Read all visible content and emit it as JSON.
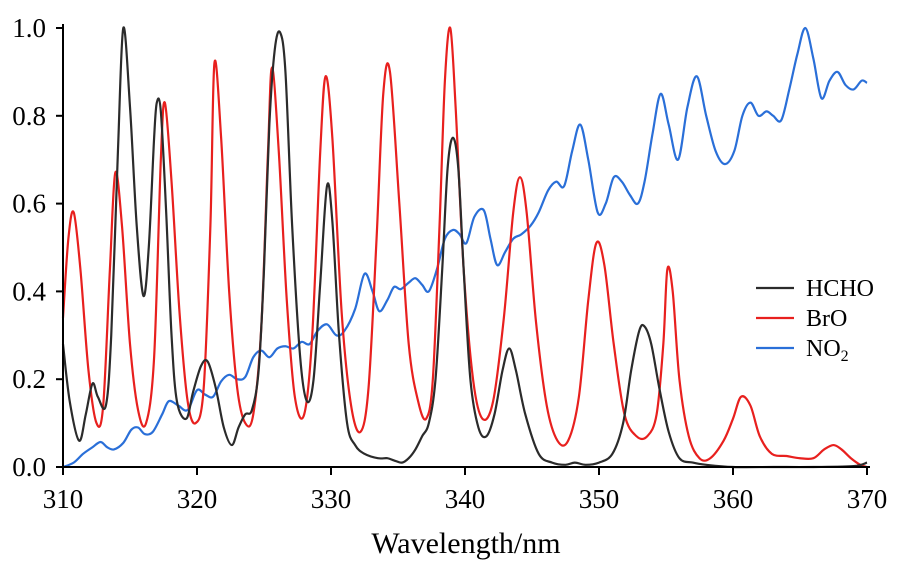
{
  "chart_data": {
    "type": "line",
    "xlabel": "Wavelength/nm",
    "ylabel": "",
    "title": "",
    "xlim": [
      310,
      370
    ],
    "ylim": [
      0,
      1.0
    ],
    "xticks": [
      "310",
      "320",
      "330",
      "340",
      "350",
      "360",
      "370"
    ],
    "yticks": [
      "0.0",
      "0.2",
      "0.4",
      "0.6",
      "0.8",
      "1.0"
    ],
    "legend_placement": "right",
    "grid": false,
    "series": [
      {
        "name": "HCHO",
        "color": "#2b2b2b",
        "x": [
          310.0,
          310.5,
          311.2,
          311.7,
          312.2,
          312.6,
          313.2,
          313.6,
          314.1,
          314.5,
          315.0,
          315.5,
          316.0,
          316.4,
          316.8,
          317.0,
          317.3,
          317.7,
          318.1,
          318.5,
          319.2,
          319.7,
          320.3,
          320.8,
          321.4,
          322.0,
          322.6,
          323.1,
          323.6,
          324.1,
          324.6,
          325.0,
          325.4,
          325.8,
          326.2,
          326.6,
          327.1,
          327.7,
          328.2,
          328.7,
          329.2,
          329.7,
          330.1,
          330.6,
          331.2,
          331.8,
          332.5,
          333.5,
          334.2,
          334.7,
          335.3,
          335.8,
          336.3,
          336.8,
          337.3,
          337.8,
          338.3,
          338.7,
          339.1,
          339.5,
          339.9,
          340.4,
          341.0,
          341.6,
          342.2,
          342.8,
          343.3,
          343.8,
          344.5,
          345.5,
          346.5,
          347.5,
          348.2,
          349.0,
          350.0,
          351.0,
          351.8,
          352.4,
          353.0,
          353.4,
          353.9,
          354.5,
          355.2,
          356.0,
          357.0,
          358.0,
          360.0,
          363.0,
          366.0,
          369.0,
          370.0
        ],
        "y": [
          0.28,
          0.15,
          0.06,
          0.12,
          0.19,
          0.16,
          0.14,
          0.3,
          0.72,
          1.0,
          0.82,
          0.55,
          0.39,
          0.5,
          0.75,
          0.83,
          0.81,
          0.58,
          0.3,
          0.15,
          0.11,
          0.17,
          0.23,
          0.24,
          0.18,
          0.09,
          0.05,
          0.09,
          0.12,
          0.13,
          0.22,
          0.45,
          0.78,
          0.95,
          0.99,
          0.9,
          0.55,
          0.25,
          0.15,
          0.2,
          0.42,
          0.64,
          0.56,
          0.3,
          0.1,
          0.05,
          0.03,
          0.02,
          0.02,
          0.015,
          0.01,
          0.02,
          0.04,
          0.07,
          0.1,
          0.2,
          0.45,
          0.68,
          0.75,
          0.68,
          0.45,
          0.2,
          0.09,
          0.07,
          0.12,
          0.22,
          0.27,
          0.22,
          0.12,
          0.03,
          0.01,
          0.005,
          0.01,
          0.005,
          0.01,
          0.03,
          0.1,
          0.22,
          0.31,
          0.32,
          0.28,
          0.18,
          0.08,
          0.02,
          0.01,
          0.005,
          0.0,
          0.0,
          0.0,
          0.002,
          0.01
        ]
      },
      {
        "name": "BrO",
        "color": "#e8201e",
        "x": [
          310.0,
          310.4,
          310.8,
          311.3,
          311.9,
          312.5,
          313.0,
          313.5,
          313.9,
          314.4,
          315.0,
          315.6,
          316.2,
          316.8,
          317.3,
          317.6,
          318.1,
          318.7,
          319.3,
          319.9,
          320.5,
          321.0,
          321.3,
          321.8,
          322.4,
          323.0,
          323.6,
          324.2,
          324.8,
          325.3,
          325.6,
          326.1,
          326.7,
          327.3,
          328.0,
          328.6,
          329.2,
          329.6,
          330.1,
          330.8,
          331.5,
          332.2,
          332.8,
          333.4,
          333.9,
          334.4,
          335.1,
          335.8,
          336.5,
          337.1,
          337.6,
          338.1,
          338.5,
          338.9,
          339.3,
          339.9,
          340.6,
          341.3,
          342.1,
          342.9,
          343.6,
          344.1,
          344.6,
          345.3,
          346.1,
          346.9,
          347.7,
          348.5,
          349.2,
          349.8,
          350.4,
          351.1,
          351.9,
          352.8,
          353.6,
          354.3,
          354.8,
          355.1,
          355.5,
          356.0,
          356.7,
          357.5,
          358.3,
          359.3,
          360.0,
          360.6,
          361.3,
          362.0,
          362.9,
          364.0,
          365.0,
          366.0,
          366.8,
          367.5,
          368.1,
          368.8,
          369.5,
          370.0
        ],
        "y": [
          0.34,
          0.52,
          0.58,
          0.45,
          0.22,
          0.1,
          0.14,
          0.45,
          0.67,
          0.55,
          0.28,
          0.13,
          0.1,
          0.25,
          0.7,
          0.83,
          0.65,
          0.35,
          0.15,
          0.1,
          0.18,
          0.55,
          0.92,
          0.75,
          0.4,
          0.18,
          0.1,
          0.12,
          0.32,
          0.72,
          0.91,
          0.72,
          0.38,
          0.16,
          0.12,
          0.3,
          0.72,
          0.89,
          0.75,
          0.35,
          0.14,
          0.08,
          0.18,
          0.52,
          0.85,
          0.9,
          0.6,
          0.28,
          0.15,
          0.11,
          0.2,
          0.55,
          0.88,
          1.0,
          0.82,
          0.45,
          0.2,
          0.11,
          0.15,
          0.34,
          0.58,
          0.66,
          0.58,
          0.33,
          0.14,
          0.06,
          0.06,
          0.16,
          0.38,
          0.51,
          0.46,
          0.28,
          0.12,
          0.07,
          0.07,
          0.12,
          0.28,
          0.45,
          0.4,
          0.2,
          0.07,
          0.02,
          0.02,
          0.06,
          0.11,
          0.16,
          0.14,
          0.07,
          0.03,
          0.025,
          0.02,
          0.02,
          0.04,
          0.05,
          0.04,
          0.02,
          0.005,
          0.0
        ]
      },
      {
        "name": "NO2",
        "color": "#2a6fd8",
        "x": [
          310.0,
          310.8,
          311.5,
          312.2,
          312.8,
          313.3,
          313.8,
          314.5,
          315.1,
          315.6,
          316.1,
          316.7,
          317.4,
          317.9,
          318.6,
          319.3,
          320.0,
          320.6,
          321.2,
          321.8,
          322.4,
          323.0,
          323.6,
          324.2,
          324.8,
          325.4,
          326.0,
          326.6,
          327.2,
          327.8,
          328.4,
          329.0,
          329.7,
          330.4,
          331.0,
          331.8,
          332.5,
          333.1,
          333.6,
          334.2,
          334.7,
          335.2,
          335.8,
          336.3,
          336.8,
          337.3,
          337.9,
          338.5,
          339.1,
          339.6,
          340.1,
          340.7,
          341.4,
          341.9,
          342.4,
          343.0,
          343.6,
          344.2,
          344.9,
          345.5,
          346.2,
          346.8,
          347.4,
          348.0,
          348.6,
          349.2,
          349.9,
          350.5,
          351.1,
          351.7,
          352.3,
          352.9,
          353.4,
          354.0,
          354.6,
          355.2,
          355.9,
          356.6,
          357.3,
          358.0,
          358.7,
          359.4,
          360.1,
          360.7,
          361.3,
          361.9,
          362.5,
          363.0,
          363.6,
          364.2,
          364.8,
          365.4,
          366.0,
          366.6,
          367.2,
          367.8,
          368.4,
          369.0,
          369.6,
          370.0
        ],
        "y": [
          0.0,
          0.01,
          0.03,
          0.045,
          0.057,
          0.045,
          0.04,
          0.055,
          0.085,
          0.09,
          0.075,
          0.08,
          0.12,
          0.15,
          0.14,
          0.13,
          0.175,
          0.165,
          0.16,
          0.195,
          0.21,
          0.2,
          0.205,
          0.25,
          0.265,
          0.25,
          0.27,
          0.275,
          0.27,
          0.285,
          0.28,
          0.31,
          0.325,
          0.3,
          0.31,
          0.36,
          0.44,
          0.4,
          0.355,
          0.38,
          0.41,
          0.405,
          0.42,
          0.43,
          0.415,
          0.4,
          0.45,
          0.52,
          0.54,
          0.53,
          0.51,
          0.57,
          0.585,
          0.52,
          0.46,
          0.49,
          0.52,
          0.53,
          0.55,
          0.58,
          0.63,
          0.65,
          0.64,
          0.72,
          0.78,
          0.7,
          0.58,
          0.6,
          0.66,
          0.65,
          0.62,
          0.6,
          0.65,
          0.76,
          0.85,
          0.78,
          0.7,
          0.82,
          0.89,
          0.8,
          0.72,
          0.69,
          0.72,
          0.8,
          0.83,
          0.8,
          0.81,
          0.8,
          0.79,
          0.86,
          0.94,
          1.0,
          0.93,
          0.84,
          0.88,
          0.9,
          0.87,
          0.86,
          0.88,
          0.875
        ]
      }
    ]
  }
}
